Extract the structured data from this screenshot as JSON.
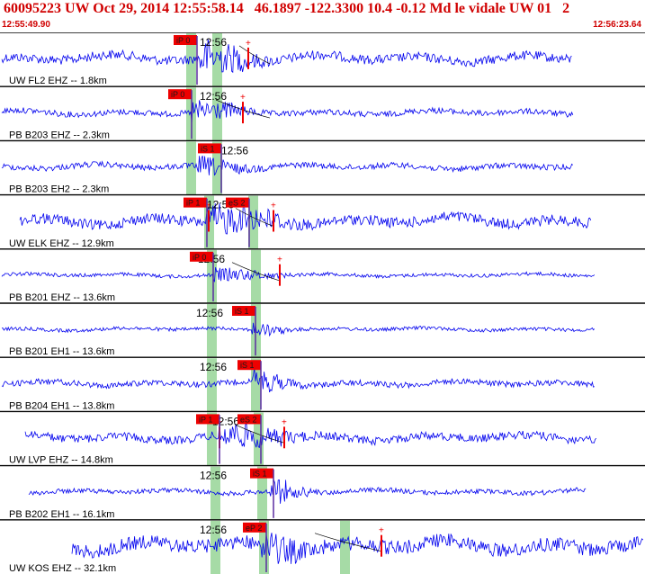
{
  "header": {
    "title": "60095223 UW Oct 29, 2014 12:55:58.14   46.1897 -122.3300 10.4 -0.12 Md le vidale UW 01   2",
    "start_time": "12:55:49.90",
    "end_time": "12:56:23.64"
  },
  "colors": {
    "trace": "#0000ee",
    "pick": "#ee0000",
    "window": "#a6dba6",
    "divider": "#000000",
    "header_text": "#d00000"
  },
  "channels": [
    {
      "label": "UW FL2 EHZ -- 1.8km",
      "time_tick": "12:56",
      "picks": [
        "iP 0"
      ]
    },
    {
      "label": "PB B203 EHZ -- 2.3km",
      "time_tick": "12:56",
      "picks": [
        "iP 0"
      ]
    },
    {
      "label": "PB B203 EH2 -- 2.3km",
      "time_tick": "12:56",
      "picks": [
        "iS 1"
      ]
    },
    {
      "label": "UW ELK EHZ -- 12.9km",
      "time_tick": "12:56",
      "picks": [
        "iP 1",
        "eS 2"
      ]
    },
    {
      "label": "PB B201 EHZ -- 13.6km",
      "time_tick": "12:56",
      "picks": [
        "iP 0"
      ]
    },
    {
      "label": "PB B201 EH1 -- 13.6km",
      "time_tick": "12:56",
      "picks": [
        "iS 1"
      ]
    },
    {
      "label": "PB B204 EH1 -- 13.8km",
      "time_tick": "12:56",
      "picks": [
        "iS 1"
      ]
    },
    {
      "label": "UW LVP EHZ -- 14.8km",
      "time_tick": "12:56",
      "picks": [
        "iP 1",
        "eS 2"
      ]
    },
    {
      "label": "PB B202 EH1 -- 16.1km",
      "time_tick": "12:56",
      "picks": [
        "iS 1"
      ]
    },
    {
      "label": "UW KOS EHZ -- 32.1km",
      "time_tick": "12:56",
      "picks": [
        "eP 2"
      ]
    }
  ]
}
